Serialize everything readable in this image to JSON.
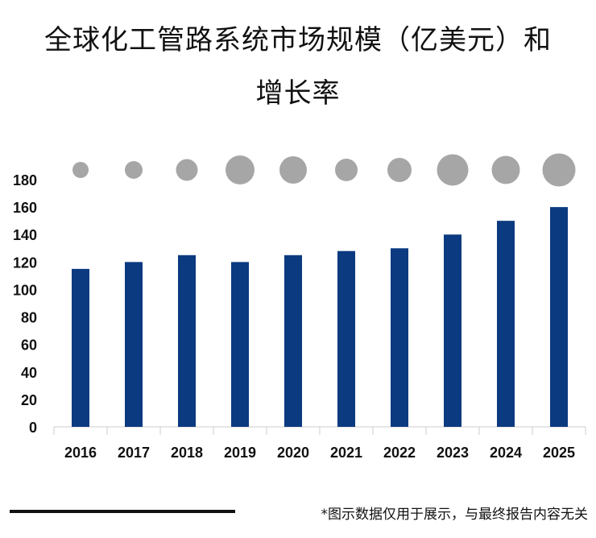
{
  "title": {
    "line1": "全球化工管路系统市场规模（亿美元）和",
    "line2": "增长率"
  },
  "footer_note": "*图示数据仅用于展示，与最终报告内容无关",
  "colors": {
    "bar": "#0b3a80",
    "bubble": "#a6a6a6",
    "axis": "#cccccc"
  },
  "chart_data": {
    "type": "bar",
    "title": "全球化工管路系统市场规模（亿美元）和增长率",
    "categories": [
      "2016",
      "2017",
      "2018",
      "2019",
      "2020",
      "2021",
      "2022",
      "2023",
      "2024",
      "2025"
    ],
    "series": [
      {
        "name": "市场规模（亿美元）",
        "values": [
          115,
          120,
          125,
          120,
          125,
          128,
          130,
          140,
          150,
          160
        ]
      },
      {
        "name": "增长率",
        "relative_bubble_size": [
          1.0,
          1.1,
          1.35,
          1.8,
          1.7,
          1.4,
          1.5,
          1.95,
          1.75,
          2.05
        ]
      }
    ],
    "ylim": [
      0,
      180
    ],
    "yticks": [
      0,
      20,
      40,
      60,
      80,
      100,
      120,
      140,
      160,
      180
    ],
    "xlabel": "",
    "ylabel": ""
  }
}
